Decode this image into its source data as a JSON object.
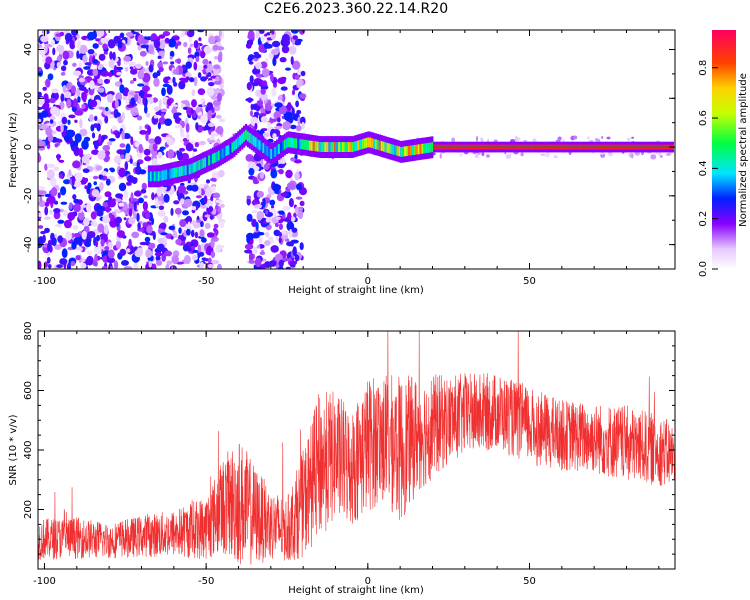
{
  "title": "C2E6.2023.360.22.14.R20",
  "colors": {
    "snr_line": "#f03030",
    "axis": "#000000",
    "reference_line": "#1a7a1a",
    "scatter_dot": "#7a1cff"
  },
  "chart_data": [
    {
      "id": "spectrogram",
      "type": "heatmap",
      "title": "C2E6.2023.360.22.14.R20",
      "xlabel": "Height of straight line (km)",
      "ylabel": "Frequency (Hz)",
      "xlim": [
        -102,
        95
      ],
      "ylim": [
        -50,
        48
      ],
      "xticks": [
        -100,
        -50,
        0,
        50
      ],
      "yticks": [
        -40,
        -20,
        0,
        20,
        40
      ],
      "grid": false,
      "description_series": [
        {
          "name": "band center (Hz) vs height (km)",
          "x": [
            -65,
            -55,
            -47,
            -42,
            -38,
            -30,
            -25,
            -15,
            -5,
            0,
            5,
            10,
            20,
            50,
            93
          ],
          "y": [
            -12,
            -9,
            -4,
            0,
            5,
            -3,
            2,
            0,
            0,
            2,
            0,
            -2,
            0,
            0,
            0
          ]
        }
      ],
      "noise_regions_km": [
        [
          -102,
          -45
        ],
        [
          -37,
          -20
        ]
      ],
      "reference_line_hz": 0,
      "colorbar": {
        "label": "Normalized spectral amplitude",
        "range": [
          0,
          0.95
        ],
        "ticks": [
          0.0,
          0.2,
          0.4,
          0.6,
          0.8
        ],
        "tick_labels": [
          "0.0",
          "0.2",
          "0.4",
          "0.6",
          "0.8"
        ],
        "stops": [
          {
            "v": 0.0,
            "color": "#ffffff"
          },
          {
            "v": 0.08,
            "color": "#e6c8ff"
          },
          {
            "v": 0.18,
            "color": "#8800ff"
          },
          {
            "v": 0.28,
            "color": "#0020ff"
          },
          {
            "v": 0.38,
            "color": "#00e5ff"
          },
          {
            "v": 0.5,
            "color": "#00ff40"
          },
          {
            "v": 0.62,
            "color": "#c8ff00"
          },
          {
            "v": 0.72,
            "color": "#ffd000"
          },
          {
            "v": 0.82,
            "color": "#ff4000"
          },
          {
            "v": 0.95,
            "color": "#ff0060"
          }
        ]
      }
    },
    {
      "id": "snr",
      "type": "line",
      "xlabel": "Height of straight line (km)",
      "ylabel": "SNR (10 * v/v)",
      "xlim": [
        -102,
        95
      ],
      "ylim": [
        0,
        800
      ],
      "xticks": [
        -100,
        -50,
        0,
        50
      ],
      "yticks": [
        200,
        400,
        600,
        800
      ],
      "grid": false,
      "envelope": {
        "x": [
          -102,
          -90,
          -80,
          -70,
          -60,
          -50,
          -45,
          -40,
          -35,
          -30,
          -25,
          -20,
          -15,
          -10,
          -5,
          0,
          5,
          10,
          15,
          20,
          25,
          30,
          40,
          50,
          60,
          70,
          80,
          90,
          95
        ],
        "mean": [
          100,
          105,
          95,
          110,
          120,
          140,
          210,
          230,
          180,
          150,
          130,
          220,
          350,
          380,
          340,
          420,
          440,
          400,
          450,
          480,
          500,
          520,
          530,
          480,
          450,
          440,
          420,
          400,
          380
        ],
        "amplitude": [
          70,
          70,
          60,
          70,
          80,
          110,
          160,
          220,
          170,
          120,
          110,
          180,
          250,
          220,
          200,
          230,
          220,
          250,
          200,
          180,
          150,
          140,
          130,
          130,
          120,
          120,
          130,
          120,
          110
        ]
      }
    }
  ],
  "axes_text": {
    "top": {
      "xlabel": "Height of straight line (km)",
      "ylabel": "Frequency (Hz)",
      "xtick_labels": [
        "-100",
        "-50",
        "0",
        "50"
      ],
      "ytick_labels": [
        "-40",
        "-20",
        "0",
        "20",
        "40"
      ],
      "colorbar_label": "Normalized spectral amplitude",
      "colorbar_tick_labels": [
        "0.0",
        "0.2",
        "0.4",
        "0.6",
        "0.8"
      ]
    },
    "bottom": {
      "xlabel": "Height of straight line (km)",
      "ylabel": "SNR (10 * v/v)",
      "xtick_labels": [
        "-100",
        "-50",
        "0",
        "50"
      ],
      "ytick_labels": [
        "200",
        "400",
        "600",
        "800"
      ]
    }
  }
}
